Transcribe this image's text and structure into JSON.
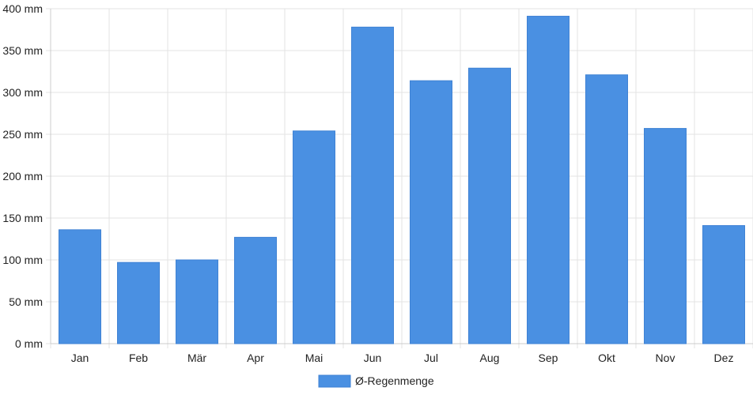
{
  "chart_data": {
    "type": "bar",
    "categories": [
      "Jan",
      "Feb",
      "Mär",
      "Apr",
      "Mai",
      "Jun",
      "Jul",
      "Aug",
      "Sep",
      "Okt",
      "Nov",
      "Dez"
    ],
    "series": [
      {
        "name": "Ø-Regenmenge",
        "values": [
          136,
          97,
          100,
          127,
          254,
          378,
          314,
          329,
          391,
          321,
          257,
          141
        ]
      }
    ],
    "ylim": [
      0,
      400
    ],
    "yticks": [
      "0 mm",
      "50 mm",
      "100 mm",
      "150 mm",
      "200 mm",
      "250 mm",
      "300 mm",
      "350 mm",
      "400 mm"
    ],
    "ytick_values": [
      0,
      50,
      100,
      150,
      200,
      250,
      300,
      350,
      400
    ],
    "unit": "mm",
    "grid": true,
    "legend": "bottom-center",
    "colors": {
      "bar": "#4a90e2",
      "bar_border": "#3f82d4",
      "grid": "#e3e3e3",
      "axis": "#cccccc",
      "text": "#222222"
    }
  }
}
